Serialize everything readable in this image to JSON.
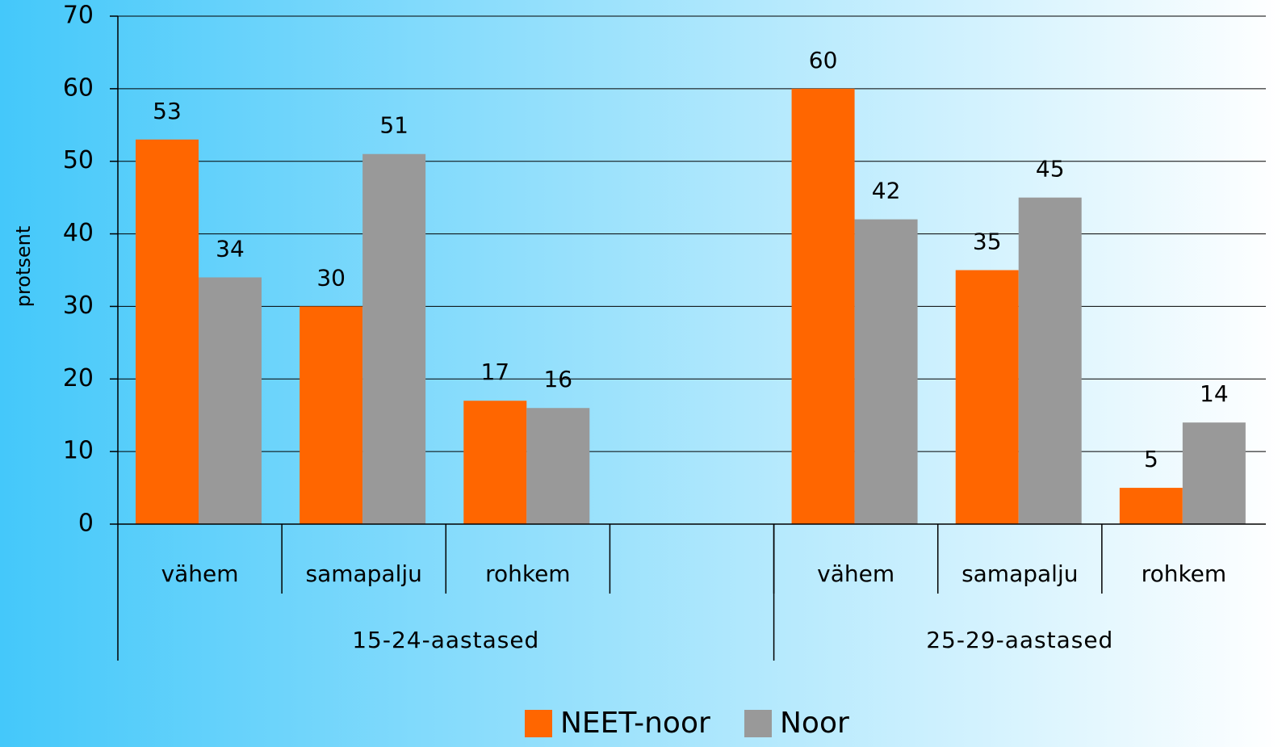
{
  "chart_data": {
    "type": "bar",
    "y_label": "protsent",
    "categories": [
      "vähem",
      "samapalju",
      "rohkem",
      null,
      "vähem",
      "samapalju",
      "rohkem"
    ],
    "groups": [
      "15-24-aastased",
      "25-29-aastased"
    ],
    "series": [
      {
        "name": "NEET-noor",
        "color": "#ff6600",
        "values": [
          53,
          30,
          17,
          null,
          60,
          35,
          5
        ]
      },
      {
        "name": "Noor",
        "color": "#999999",
        "values": [
          34,
          51,
          16,
          null,
          42,
          45,
          14
        ]
      }
    ],
    "ylim": [
      0,
      70
    ],
    "yticks": [
      0,
      10,
      20,
      30,
      40,
      50,
      60,
      70
    ],
    "grid": true
  }
}
